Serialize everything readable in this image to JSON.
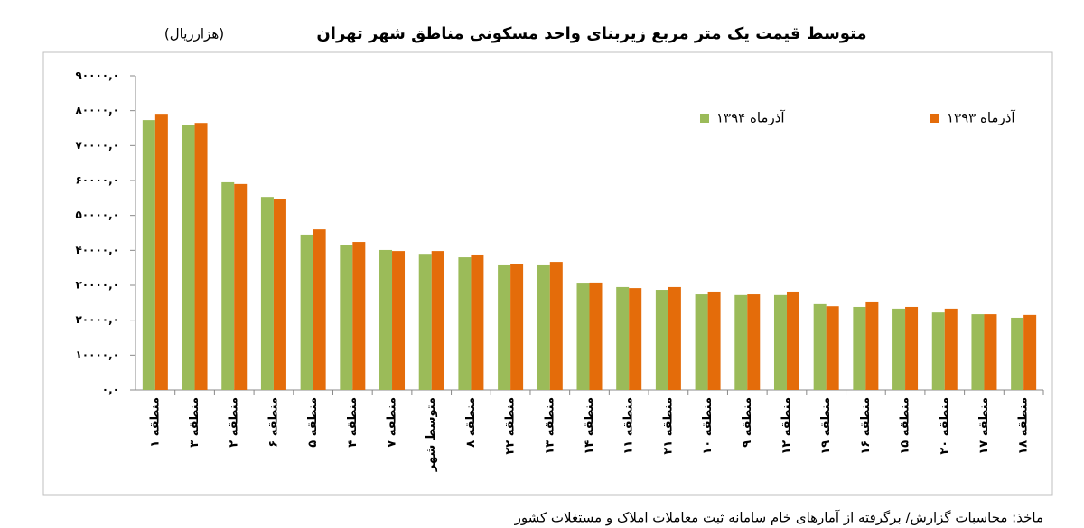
{
  "chart_data": {
    "type": "bar",
    "title": "متوسط قیمت یک متر مربع زیربنای واحد مسکونی مناطق شهر تهران",
    "unit": "(هزارریال)",
    "source": "ماخذ: محاسبات گزارش/ برگرفته از آمارهای خام سامانه ثبت معاملات املاک و مستغلات کشور",
    "categories": [
      "منطقه ۱",
      "منطقه ۳",
      "منطقه ۲",
      "منطقه ۶",
      "منطقه ۵",
      "منطقه ۴",
      "منطقه ۷",
      "متوسط شهر",
      "منطقه ۸",
      "منطقه ۲۲",
      "منطقه ۱۳",
      "منطقه ۱۴",
      "منطقه ۱۱",
      "منطقه ۲۱",
      "منطقه ۱۰",
      "منطقه ۹",
      "منطقه ۱۲",
      "منطقه ۱۹",
      "منطقه ۱۶",
      "منطقه ۱۵",
      "منطقه ۲۰",
      "منطقه ۱۷",
      "منطقه ۱۸"
    ],
    "series": [
      {
        "name": "آذرماه ۱۳۹۴",
        "color": "#9bbb59",
        "values": [
          77300,
          75800,
          59500,
          55300,
          44500,
          41400,
          40100,
          39000,
          38000,
          35700,
          35700,
          30500,
          29500,
          28700,
          27400,
          27200,
          27200,
          24600,
          23800,
          23300,
          22200,
          21700,
          20700
        ]
      },
      {
        "name": "آذرماه ۱۳۹۳",
        "color": "#e46c0a",
        "values": [
          79100,
          76500,
          59000,
          54600,
          46000,
          42400,
          39800,
          39800,
          38800,
          36200,
          36700,
          30800,
          29200,
          29500,
          28200,
          27400,
          28200,
          24000,
          25100,
          23800,
          23300,
          21700,
          21500
        ]
      }
    ],
    "ylim": [
      0,
      90000
    ],
    "yticks": [
      {
        "value": 0,
        "label": "۰,۰"
      },
      {
        "value": 10000,
        "label": "۱۰۰۰۰,۰"
      },
      {
        "value": 20000,
        "label": "۲۰۰۰۰,۰"
      },
      {
        "value": 30000,
        "label": "۳۰۰۰۰,۰"
      },
      {
        "value": 40000,
        "label": "۴۰۰۰۰,۰"
      },
      {
        "value": 50000,
        "label": "۵۰۰۰۰,۰"
      },
      {
        "value": 60000,
        "label": "۶۰۰۰۰,۰"
      },
      {
        "value": 70000,
        "label": "۷۰۰۰۰,۰"
      },
      {
        "value": 80000,
        "label": "۸۰۰۰۰,۰"
      },
      {
        "value": 90000,
        "label": "۹۰۰۰۰,۰"
      }
    ],
    "grid": false,
    "legend": "top-right"
  }
}
